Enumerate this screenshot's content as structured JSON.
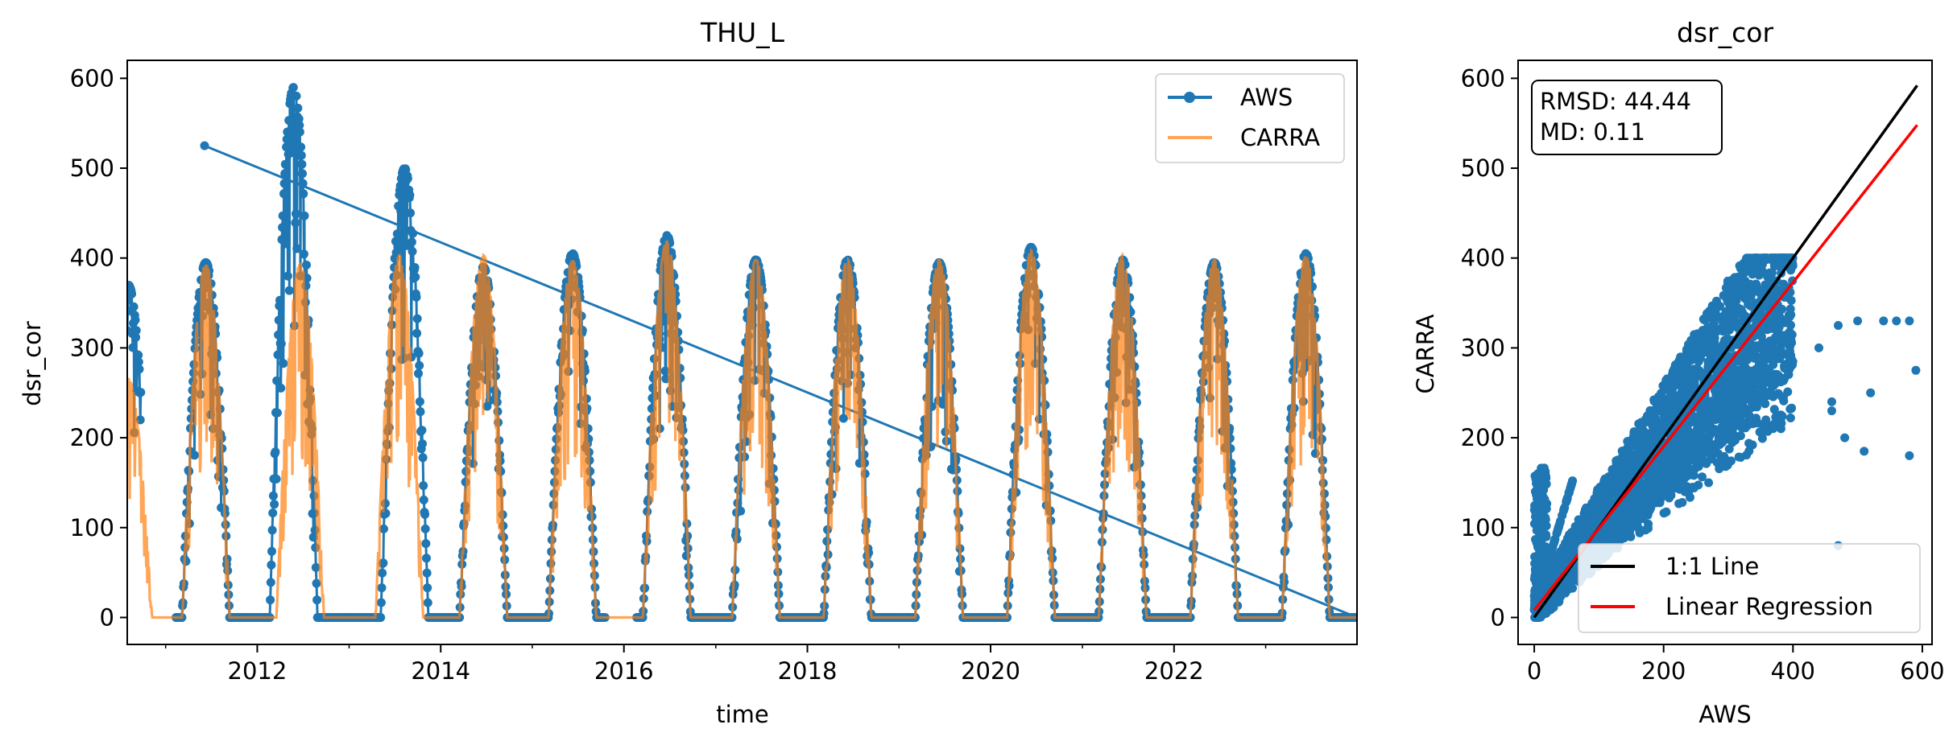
{
  "chart_data": [
    {
      "type": "line",
      "title": "THU_L",
      "xlabel": "time",
      "ylabel": "dsr_cor",
      "xlim": [
        "2010-08-01",
        "2023-12-31"
      ],
      "ylim": [
        -30,
        620
      ],
      "xticks": [
        "2012",
        "2014",
        "2016",
        "2018",
        "2020",
        "2022"
      ],
      "yticks": [
        "0",
        "100",
        "200",
        "300",
        "400",
        "500",
        "600"
      ],
      "legend_position": "top-right",
      "grid": false,
      "series": [
        {
          "name": "AWS",
          "color": "#1f77b4",
          "marker": "circle",
          "seasonal_peaks": [
            {
              "date": "2010-08-05",
              "value": 370
            },
            {
              "date": "2011-06-10",
              "value": 395
            },
            {
              "date": "2012-05-25",
              "value": 590
            },
            {
              "date": "2013-08-10",
              "value": 500
            },
            {
              "date": "2014-06-20",
              "value": 390
            },
            {
              "date": "2015-06-10",
              "value": 405
            },
            {
              "date": "2016-06-20",
              "value": 425
            },
            {
              "date": "2017-06-10",
              "value": 398
            },
            {
              "date": "2018-06-10",
              "value": 398
            },
            {
              "date": "2019-06-10",
              "value": 395
            },
            {
              "date": "2020-06-10",
              "value": 412
            },
            {
              "date": "2021-06-10",
              "value": 398
            },
            {
              "date": "2022-06-10",
              "value": 395
            },
            {
              "date": "2023-06-10",
              "value": 405
            }
          ],
          "spikes": [
            {
              "date": "2011-06-05",
              "value": 525
            }
          ]
        },
        {
          "name": "CARRA",
          "color": "#ff7f0e",
          "alpha": 0.7,
          "seasonal_peaks": [
            {
              "date": "2010-08-05",
              "value": 260
            },
            {
              "date": "2011-06-10",
              "value": 385
            },
            {
              "date": "2012-06-20",
              "value": 385
            },
            {
              "date": "2013-07-20",
              "value": 395
            },
            {
              "date": "2014-06-20",
              "value": 395
            },
            {
              "date": "2015-06-10",
              "value": 390
            },
            {
              "date": "2016-06-20",
              "value": 410
            },
            {
              "date": "2017-06-10",
              "value": 390
            },
            {
              "date": "2018-06-10",
              "value": 390
            },
            {
              "date": "2019-06-10",
              "value": 390
            },
            {
              "date": "2020-06-10",
              "value": 400
            },
            {
              "date": "2021-06-10",
              "value": 395
            },
            {
              "date": "2022-06-10",
              "value": 390
            },
            {
              "date": "2023-06-10",
              "value": 395
            }
          ]
        }
      ]
    },
    {
      "type": "scatter",
      "title": "dsr_cor",
      "xlabel": "AWS",
      "ylabel": "CARRA",
      "xlim": [
        -25,
        615
      ],
      "ylim": [
        -30,
        620
      ],
      "xticks": [
        "0",
        "200",
        "400",
        "600"
      ],
      "yticks": [
        "0",
        "100",
        "200",
        "300",
        "400",
        "500",
        "600"
      ],
      "annotation": [
        "RMSD: 44.44",
        "MD: 0.11"
      ],
      "legend_position": "lower-right",
      "grid": false,
      "points_color": "#1f77b4",
      "lines": [
        {
          "name": "1:1 Line",
          "color": "#000000",
          "x": [
            0,
            592
          ],
          "y": [
            0,
            592
          ]
        },
        {
          "name": "Linear Regression",
          "color": "#ff0000",
          "x": [
            0,
            592
          ],
          "y": [
            8,
            548
          ]
        }
      ],
      "outliers": [
        {
          "x": 470,
          "y": 325
        },
        {
          "x": 500,
          "y": 330
        },
        {
          "x": 540,
          "y": 330
        },
        {
          "x": 560,
          "y": 330
        },
        {
          "x": 580,
          "y": 330
        },
        {
          "x": 590,
          "y": 275
        },
        {
          "x": 580,
          "y": 180
        },
        {
          "x": 510,
          "y": 185
        },
        {
          "x": 480,
          "y": 200
        },
        {
          "x": 460,
          "y": 230
        },
        {
          "x": 470,
          "y": 80
        },
        {
          "x": 460,
          "y": 240
        },
        {
          "x": 520,
          "y": 250
        },
        {
          "x": 440,
          "y": 300
        }
      ]
    }
  ]
}
